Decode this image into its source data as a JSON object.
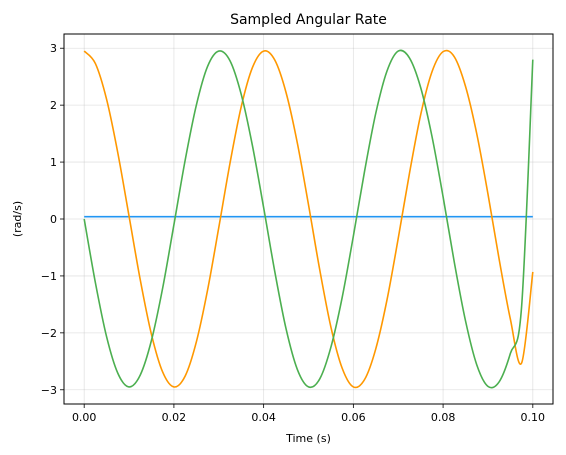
{
  "chart_data": {
    "type": "line",
    "title": "Sampled Angular Rate",
    "xlabel": "Time (s)",
    "ylabel": "(rad/s)",
    "xlim": [
      -0.0045,
      0.1045
    ],
    "ylim": [
      -3.25,
      3.25
    ],
    "xticks": [
      0.0,
      0.02,
      0.04,
      0.06,
      0.08,
      0.1
    ],
    "xtick_labels": [
      "0.00",
      "0.02",
      "0.04",
      "0.06",
      "0.08",
      "0.10"
    ],
    "yticks": [
      -3,
      -2,
      -1,
      0,
      1,
      2,
      3
    ],
    "ytick_labels": [
      "−3",
      "−2",
      "−1",
      "0",
      "1",
      "2",
      "3"
    ],
    "grid": true,
    "series": [
      {
        "color": "#2196f3",
        "x": [
          0.0,
          0.1
        ],
        "y": [
          0.04,
          0.04
        ]
      },
      {
        "color": "#ff9800",
        "x": [
          0.0,
          0.0025,
          0.005,
          0.0075,
          0.01,
          0.0125,
          0.015,
          0.0175,
          0.02,
          0.0225,
          0.025,
          0.0275,
          0.03,
          0.0325,
          0.035,
          0.0375,
          0.04,
          0.0425,
          0.045,
          0.0475,
          0.05,
          0.0525,
          0.055,
          0.0575,
          0.06,
          0.0625,
          0.065,
          0.0675,
          0.07,
          0.0725,
          0.075,
          0.0775,
          0.08,
          0.0825,
          0.085,
          0.0875,
          0.09,
          0.0925,
          0.095,
          0.0975,
          0.1
        ],
        "y": [
          2.95,
          2.73,
          2.1,
          1.16,
          0.05,
          -1.07,
          -2.03,
          -2.69,
          -2.95,
          -2.76,
          -2.16,
          -1.25,
          -0.15,
          0.98,
          1.97,
          2.66,
          2.95,
          2.79,
          2.22,
          1.34,
          0.25,
          -0.89,
          -1.9,
          -2.62,
          -2.95,
          -2.82,
          -2.28,
          -1.42,
          -0.34,
          0.8,
          1.83,
          2.58,
          2.94,
          2.85,
          2.33,
          1.5,
          0.44,
          -0.71,
          -1.76,
          -2.53,
          -0.93
        ]
      },
      {
        "color": "#4caf50",
        "x": [
          0.0,
          0.0025,
          0.005,
          0.0075,
          0.01,
          0.0125,
          0.015,
          0.0175,
          0.02,
          0.0225,
          0.025,
          0.0275,
          0.03,
          0.0325,
          0.035,
          0.0375,
          0.04,
          0.0425,
          0.045,
          0.0475,
          0.05,
          0.0525,
          0.055,
          0.0575,
          0.06,
          0.0625,
          0.065,
          0.0675,
          0.07,
          0.0725,
          0.075,
          0.0775,
          0.08,
          0.0825,
          0.085,
          0.0875,
          0.09,
          0.0925,
          0.095,
          0.0975,
          0.1
        ],
        "y": [
          0.0,
          -1.12,
          -2.07,
          -2.71,
          -2.95,
          -2.74,
          -2.13,
          -1.21,
          -0.1,
          1.03,
          2.0,
          2.68,
          2.95,
          2.78,
          2.19,
          1.29,
          0.2,
          -0.93,
          -1.93,
          -2.64,
          -2.95,
          -2.81,
          -2.25,
          -1.38,
          -0.3,
          0.84,
          1.86,
          2.6,
          2.95,
          2.83,
          2.31,
          1.46,
          0.39,
          -0.76,
          -1.79,
          -2.56,
          -2.94,
          -2.86,
          -2.36,
          -1.54,
          2.8
        ]
      }
    ]
  }
}
